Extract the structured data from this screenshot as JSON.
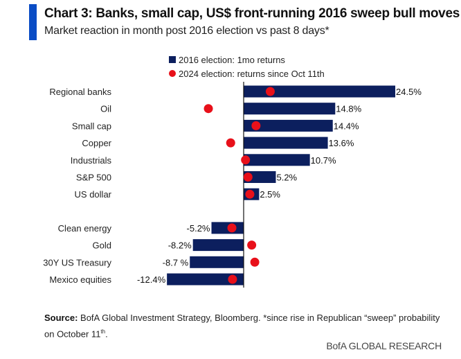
{
  "header": {
    "title": "Chart 3: Banks, small cap, US$ front-running 2016 sweep bull moves",
    "subtitle": "Market reaction in month post 2016 election vs past 8 days*"
  },
  "colors": {
    "accent": "#0a4cc5",
    "bar": "#0c1f5e",
    "dot": "#e8101a"
  },
  "chart_data": {
    "type": "bar",
    "orientation": "horizontal",
    "title": "Chart 3: Banks, small cap, US$ front-running 2016 sweep bull moves",
    "subtitle": "Market reaction in month post 2016 election vs past 8 days*",
    "xlabel": "",
    "ylabel": "",
    "unit": "%",
    "grid": false,
    "legend_position": "top-center",
    "categories": [
      "Regional banks",
      "Oil",
      "Small cap",
      "Copper",
      "Industrials",
      "S&P 500",
      "US dollar",
      "Clean energy",
      "Gold",
      "30Y US Treasury",
      "Mexico equities"
    ],
    "group_break_after_index": 6,
    "series": [
      {
        "name": "2016 election: 1mo returns",
        "type": "bar",
        "values": [
          24.5,
          14.8,
          14.4,
          13.6,
          10.7,
          5.2,
          2.5,
          -5.2,
          -8.2,
          -8.7,
          -12.4
        ],
        "labels": [
          "24.5%",
          "14.8%",
          "14.4%",
          "13.6%",
          "10.7%",
          "5.2%",
          "2.5%",
          "-5.2%",
          "-8.2%",
          "-8.7 %",
          "-12.4%"
        ]
      },
      {
        "name": "2024 election: returns since Oct 11th",
        "type": "scatter",
        "values": [
          4.3,
          -5.7,
          2.0,
          -2.1,
          0.3,
          0.7,
          1.0,
          -1.9,
          1.3,
          1.8,
          -1.8
        ]
      }
    ],
    "xlim": [
      -15,
      27
    ]
  },
  "legend": {
    "items": [
      {
        "label": "2016 election: 1mo returns",
        "marker": "square"
      },
      {
        "label": "2024 election: returns since Oct 11th",
        "marker": "dot"
      }
    ]
  },
  "footer": {
    "source_label": "Source:",
    "source_text": " BofA Global Investment Strategy, Bloomberg. *since rise in Republican “sweep” probability on October 11",
    "source_sup": "th",
    "source_end": ".",
    "brand": "BofA GLOBAL RESEARCH"
  }
}
